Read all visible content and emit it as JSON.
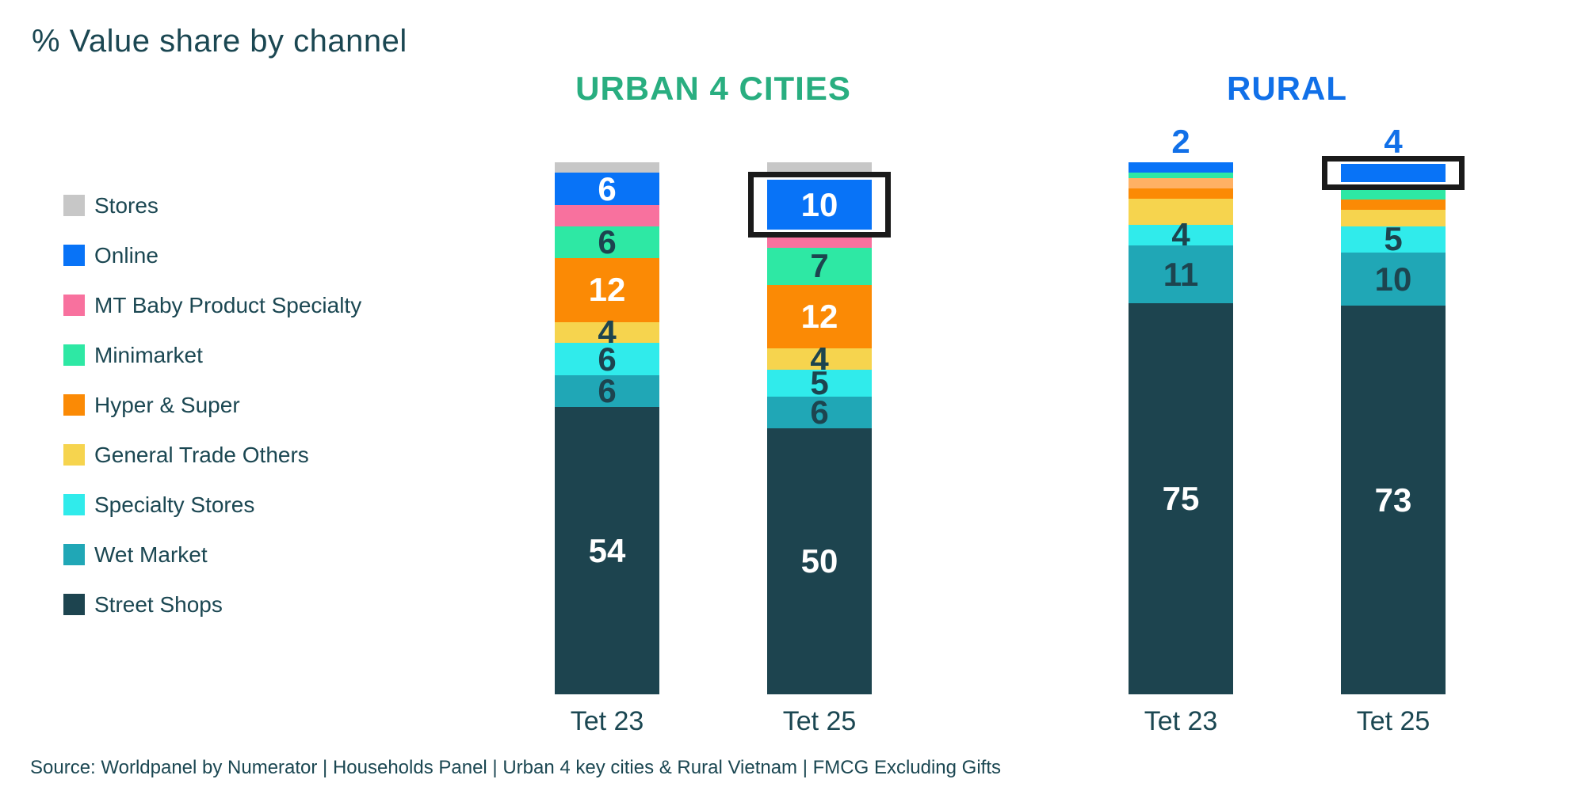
{
  "title": "% Value share by channel",
  "source": "Source: Worldpanel by Numerator | Households Panel | Urban 4 key cities & Rural Vietnam | FMCG Excluding Gifts",
  "colors": {
    "text": "#1B4752",
    "urban_header": "#29AE80",
    "rural_header": "#1170E8",
    "highlight_border": "#1A1A1A"
  },
  "legend": {
    "items": [
      {
        "label": "Stores",
        "color": "#C7C7C7"
      },
      {
        "label": "Online",
        "color": "#0873F7"
      },
      {
        "label": "MT Baby Product Specialty",
        "color": "#F8719E"
      },
      {
        "label": "Minimarket",
        "color": "#2EE8A4"
      },
      {
        "label": "Hyper & Super",
        "color": "#FB8A05"
      },
      {
        "label": "General Trade Others",
        "color": "#F6D44E"
      },
      {
        "label": "Specialty Stores",
        "color": "#30EBEB"
      },
      {
        "label": "Wet Market",
        "color": "#20A7B6"
      },
      {
        "label": "Street Shops",
        "color": "#1D444F"
      }
    ]
  },
  "chart_data": {
    "type": "bar",
    "stacked": true,
    "units": "% value share",
    "value_total": 100,
    "categories": [
      "Tet 23",
      "Tet 25"
    ],
    "groups": [
      {
        "name": "URBAN 4 CITIES",
        "header_color": "#29AE80",
        "bars": [
          {
            "category": "Tet 23",
            "segments": [
              {
                "channel": "Stores",
                "value": 2,
                "label": "",
                "color": "#C7C7C7"
              },
              {
                "channel": "Online",
                "value": 6,
                "label": "6",
                "color": "#0873F7",
                "label_color": "#FFFFFF"
              },
              {
                "channel": "MT Baby Product Specialty",
                "value": 4,
                "label": "",
                "color": "#F8719E"
              },
              {
                "channel": "Minimarket",
                "value": 6,
                "label": "6",
                "color": "#2EE8A4",
                "label_color": "#1D444F"
              },
              {
                "channel": "Hyper & Super",
                "value": 12,
                "label": "12",
                "color": "#FB8A05",
                "label_color": "#FFFFFF"
              },
              {
                "channel": "General Trade Others",
                "value": 4,
                "label": "4",
                "color": "#F6D44E",
                "label_color": "#1D444F"
              },
              {
                "channel": "Specialty Stores",
                "value": 6,
                "label": "6",
                "color": "#30EBEB",
                "label_color": "#1D444F"
              },
              {
                "channel": "Wet Market",
                "value": 6,
                "label": "6",
                "color": "#20A7B6",
                "label_color": "#1D444F"
              },
              {
                "channel": "Street Shops",
                "value": 54,
                "label": "54",
                "color": "#1D444F",
                "label_color": "#FFFFFF"
              }
            ]
          },
          {
            "category": "Tet 25",
            "segments": [
              {
                "channel": "Stores",
                "value": 3,
                "label": "",
                "color": "#C7C7C7"
              },
              {
                "channel": "Online",
                "value": 10,
                "label": "10",
                "color": "#0873F7",
                "label_color": "#FFFFFF",
                "highlighted": true
              },
              {
                "channel": "MT Baby Product Specialty",
                "value": 3,
                "label": "",
                "color": "#F8719E"
              },
              {
                "channel": "Minimarket",
                "value": 7,
                "label": "7",
                "color": "#2EE8A4",
                "label_color": "#1D444F"
              },
              {
                "channel": "Hyper & Super",
                "value": 12,
                "label": "12",
                "color": "#FB8A05",
                "label_color": "#FFFFFF"
              },
              {
                "channel": "General Trade Others",
                "value": 4,
                "label": "4",
                "color": "#F6D44E",
                "label_color": "#1D444F"
              },
              {
                "channel": "Specialty Stores",
                "value": 5,
                "label": "5",
                "color": "#30EBEB",
                "label_color": "#1D444F"
              },
              {
                "channel": "Wet Market",
                "value": 6,
                "label": "6",
                "color": "#20A7B6",
                "label_color": "#1D444F"
              },
              {
                "channel": "Street Shops",
                "value": 50,
                "label": "50",
                "color": "#1D444F",
                "label_color": "#FFFFFF"
              }
            ]
          }
        ]
      },
      {
        "name": "RURAL",
        "header_color": "#1170E8",
        "bars": [
          {
            "category": "Tet 23",
            "segments": [
              {
                "channel": "Online",
                "value": 2,
                "label": "2",
                "label_position": "above",
                "color": "#0873F7",
                "label_color": "#1170E8"
              },
              {
                "channel": "Minimarket",
                "value": 1,
                "label": "",
                "color": "#2EE8A4"
              },
              {
                "channel": "light-orange (not in legend)",
                "value": 2,
                "label": "",
                "color": "#FFB164"
              },
              {
                "channel": "Hyper & Super",
                "value": 2,
                "label": "",
                "color": "#FB8A05"
              },
              {
                "channel": "General Trade Others",
                "value": 5,
                "label": "",
                "color": "#F6D44E"
              },
              {
                "channel": "Specialty Stores",
                "value": 4,
                "label": "4",
                "color": "#30EBEB",
                "label_color": "#1D444F"
              },
              {
                "channel": "Wet Market",
                "value": 11,
                "label": "11",
                "color": "#20A7B6",
                "label_color": "#1D444F"
              },
              {
                "channel": "Street Shops",
                "value": 75,
                "label": "75",
                "color": "#1D444F",
                "label_color": "#FFFFFF"
              }
            ]
          },
          {
            "category": "Tet 25",
            "segments": [
              {
                "channel": "Online",
                "value": 4,
                "label": "4",
                "label_position": "above",
                "color": "#0873F7",
                "label_color": "#1170E8",
                "highlighted": true
              },
              {
                "channel": "MT Baby Product Specialty",
                "value": 1,
                "label": "",
                "color": "#F8719E"
              },
              {
                "channel": "Minimarket",
                "value": 2,
                "label": "",
                "color": "#2EE8A4"
              },
              {
                "channel": "Hyper & Super",
                "value": 2,
                "label": "",
                "color": "#FB8A05"
              },
              {
                "channel": "General Trade Others",
                "value": 3,
                "label": "",
                "color": "#F6D44E"
              },
              {
                "channel": "Specialty Stores",
                "value": 5,
                "label": "5",
                "color": "#30EBEB",
                "label_color": "#1D444F"
              },
              {
                "channel": "Wet Market",
                "value": 10,
                "label": "10",
                "color": "#20A7B6",
                "label_color": "#1D444F"
              },
              {
                "channel": "Street Shops",
                "value": 73,
                "label": "73",
                "color": "#1D444F",
                "label_color": "#FFFFFF"
              }
            ]
          }
        ]
      }
    ]
  }
}
